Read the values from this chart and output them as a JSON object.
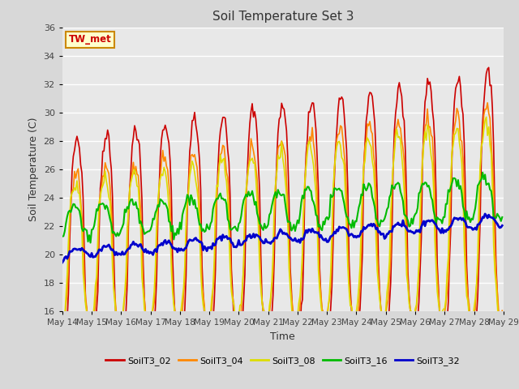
{
  "title": "Soil Temperature Set 3",
  "xlabel": "Time",
  "ylabel": "Soil Temperature (C)",
  "ylim": [
    16,
    36
  ],
  "yticks": [
    16,
    18,
    20,
    22,
    24,
    26,
    28,
    30,
    32,
    34,
    36
  ],
  "annotation_text": "TW_met",
  "annotation_color": "#cc0000",
  "annotation_bg": "#ffffcc",
  "annotation_border": "#cc8800",
  "fig_facecolor": "#d8d8d8",
  "ax_facecolor": "#e8e8e8",
  "legend_colors": [
    "#cc0000",
    "#ff8800",
    "#dddd00",
    "#00bb00",
    "#0000cc"
  ],
  "legend_labels": [
    "SoilT3_02",
    "SoilT3_04",
    "SoilT3_08",
    "SoilT3_16",
    "SoilT3_32"
  ],
  "xtick_labels": [
    "May 14",
    "May 15",
    "May 16",
    "May 17",
    "May 18",
    "May 19",
    "May 20",
    "May 21",
    "May 22",
    "May 23",
    "May 24",
    "May 25",
    "May 26",
    "May 27",
    "May 28",
    "May 29"
  ],
  "num_points_per_day": 24,
  "n_days": 15
}
